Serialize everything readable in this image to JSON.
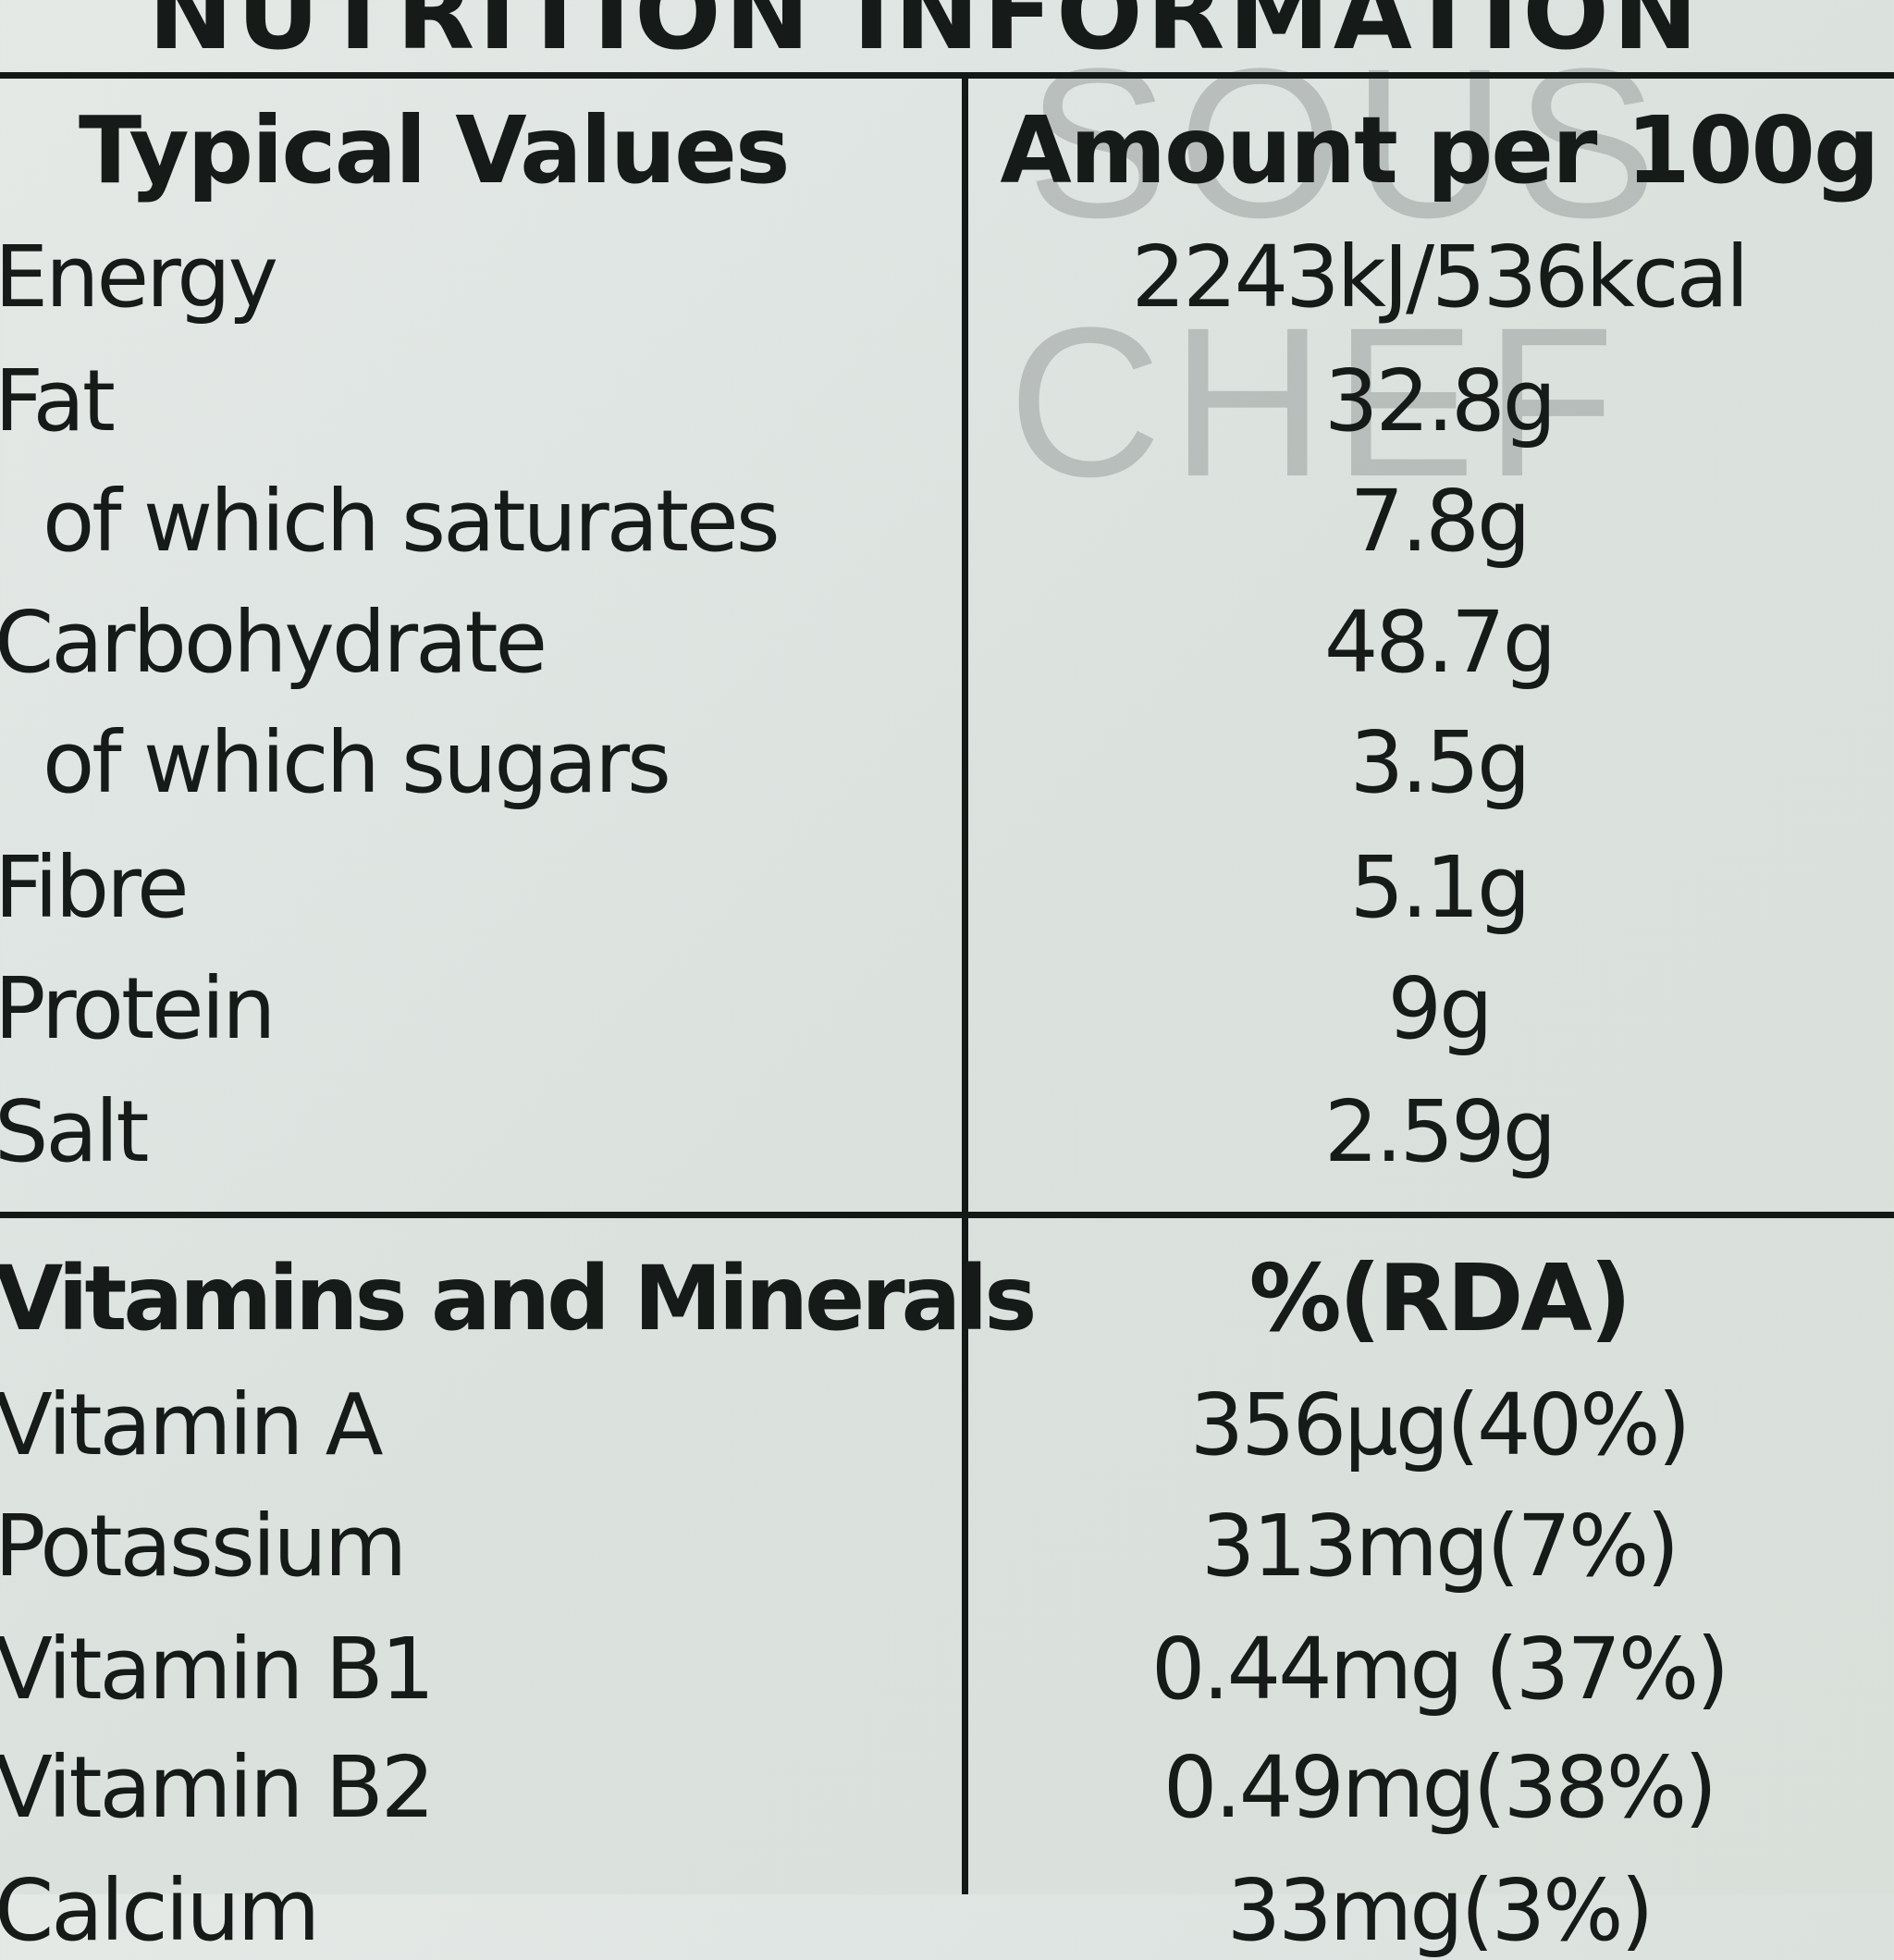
{
  "title": "NUTRITION INFORMATION",
  "watermark": [
    "SOUS",
    "CHEF"
  ],
  "table": {
    "header": [
      "Typical Values",
      "Amount per 100g"
    ],
    "rows": [
      [
        "Energy",
        "2243kJ/536kcal"
      ],
      [
        "Fat",
        "32.8g"
      ],
      [
        "of which saturates",
        "7.8g"
      ],
      [
        "Carbohydrate",
        "48.7g"
      ],
      [
        "of which sugars",
        "3.5g"
      ],
      [
        "Fibre",
        "5.1g"
      ],
      [
        "Protein",
        "9g"
      ],
      [
        "Salt",
        "2.59g"
      ]
    ],
    "section_header": [
      "Vitamins and Minerals",
      "%(RDA)"
    ],
    "section_rows": [
      [
        "Vitamin A",
        "356µg(40%)"
      ],
      [
        "Potassium",
        "313mg(7%)"
      ],
      [
        "Vitamin B1",
        "0.44mg (37%)"
      ],
      [
        "Vitamin B2",
        "0.49mg(38%)"
      ],
      [
        "Calcium",
        "33mg(3%)"
      ]
    ]
  }
}
